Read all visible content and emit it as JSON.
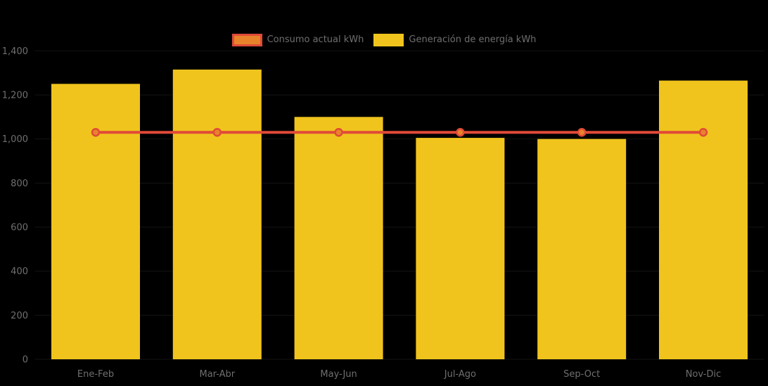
{
  "chart_data": {
    "type": "bar",
    "title": "",
    "xlabel": "",
    "ylabel": "",
    "categories": [
      "Ene-Feb",
      "Mar-Abr",
      "May-Jun",
      "Jul-Ago",
      "Sep-Oct",
      "Nov-Dic"
    ],
    "series": [
      {
        "name": "Consumo actual kWh",
        "type": "line",
        "values": [
          1030,
          1030,
          1030,
          1030,
          1030,
          1030
        ],
        "color": "#e04a38",
        "marker_fill": "#e8832c"
      },
      {
        "name": "Generación de energía kWh",
        "type": "bar",
        "values": [
          1250,
          1315,
          1100,
          1005,
          1000,
          1265
        ],
        "color": "#f0c41d"
      }
    ],
    "ylim": [
      0,
      1400
    ],
    "ytick_step": 200,
    "ytick_labels": [
      "0",
      "200",
      "400",
      "600",
      "800",
      "1,000",
      "1,200",
      "1,400"
    ],
    "legend_position": "top-center",
    "grid": false,
    "background_color": "#000000",
    "text_color": "#6f6f6f"
  },
  "legend": {
    "items": [
      {
        "label": "Consumo actual kWh"
      },
      {
        "label": "Generación de energía kWh"
      }
    ]
  }
}
